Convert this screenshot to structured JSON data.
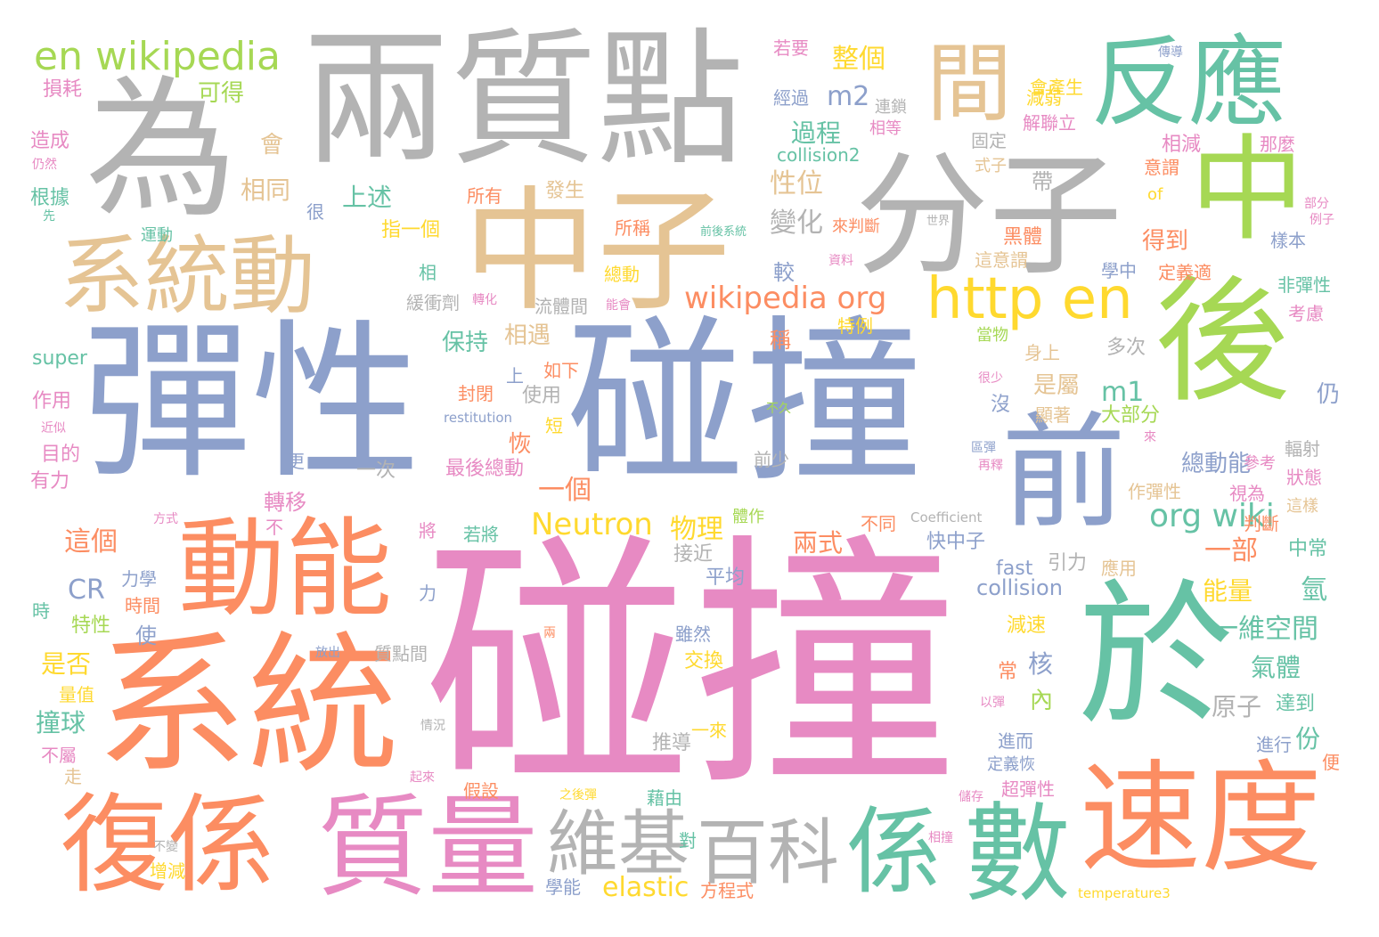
{
  "palette": {
    "pink": "#e78ac3",
    "blue": "#8da0cb",
    "orange": "#fc8d62",
    "teal": "#66c2a5",
    "green": "#a6d854",
    "yellow": "#ffd92f",
    "tan": "#e5c494",
    "grey": "#b3b3b3"
  },
  "words": [
    {
      "text": "碰撞",
      "color": "pink"
    },
    {
      "text": "彈性",
      "color": "blue"
    },
    {
      "text": "碰撞",
      "color": "blue"
    },
    {
      "text": "兩質點",
      "color": "grey"
    },
    {
      "text": "為",
      "color": "grey"
    },
    {
      "text": "中子",
      "color": "tan"
    },
    {
      "text": "分子",
      "color": "grey"
    },
    {
      "text": "反應",
      "color": "teal"
    },
    {
      "text": "間",
      "color": "tan"
    },
    {
      "text": "中",
      "color": "green"
    },
    {
      "text": "系統動",
      "color": "tan"
    },
    {
      "text": "後",
      "color": "green"
    },
    {
      "text": "動能",
      "color": "orange"
    },
    {
      "text": "系統",
      "color": "orange"
    },
    {
      "text": "於",
      "color": "teal"
    },
    {
      "text": "前",
      "color": "blue"
    },
    {
      "text": "速度",
      "color": "orange"
    },
    {
      "text": "復係",
      "color": "orange"
    },
    {
      "text": "質量",
      "color": "pink"
    },
    {
      "text": "維基",
      "color": "grey"
    },
    {
      "text": "百科",
      "color": "grey"
    },
    {
      "text": "係",
      "color": "teal"
    },
    {
      "text": "數",
      "color": "teal"
    },
    {
      "text": "http en",
      "color": "yellow"
    },
    {
      "text": "en wikipedia",
      "color": "green"
    },
    {
      "text": "wikipedia org",
      "color": "orange"
    },
    {
      "text": "org wiki",
      "color": "teal"
    },
    {
      "text": "Neutron",
      "color": "yellow"
    },
    {
      "text": "elastic",
      "color": "yellow"
    },
    {
      "text": "collision",
      "color": "blue"
    },
    {
      "text": "collision2",
      "color": "teal"
    },
    {
      "text": "m2",
      "color": "blue"
    },
    {
      "text": "m1",
      "color": "teal"
    },
    {
      "text": "CR",
      "color": "blue"
    },
    {
      "text": "super",
      "color": "teal"
    },
    {
      "text": "fast",
      "color": "blue"
    },
    {
      "text": "of",
      "color": "yellow"
    },
    {
      "text": "restitution",
      "color": "blue"
    },
    {
      "text": "Coefficient",
      "color": "grey"
    },
    {
      "text": "temperature3",
      "color": "yellow"
    },
    {
      "text": "整個",
      "color": "yellow"
    },
    {
      "text": "過程",
      "color": "teal"
    },
    {
      "text": "性位",
      "color": "tan"
    },
    {
      "text": "變化",
      "color": "grey"
    },
    {
      "text": "較",
      "color": "blue"
    },
    {
      "text": "上述",
      "color": "teal"
    },
    {
      "text": "相同",
      "color": "tan"
    },
    {
      "text": "可得",
      "color": "green"
    },
    {
      "text": "會",
      "color": "tan"
    },
    {
      "text": "損耗",
      "color": "pink"
    },
    {
      "text": "造成",
      "color": "pink"
    },
    {
      "text": "根據",
      "color": "teal"
    },
    {
      "text": "運動",
      "color": "teal"
    },
    {
      "text": "所有",
      "color": "orange"
    },
    {
      "text": "發生",
      "color": "tan"
    },
    {
      "text": "指一個",
      "color": "yellow"
    },
    {
      "text": "所稱",
      "color": "orange"
    },
    {
      "text": "總動",
      "color": "yellow"
    },
    {
      "text": "緩衝劑",
      "color": "grey"
    },
    {
      "text": "流體間",
      "color": "grey"
    },
    {
      "text": "保持",
      "color": "teal"
    },
    {
      "text": "相遇",
      "color": "tan"
    },
    {
      "text": "是屬",
      "color": "tan"
    },
    {
      "text": "大部分",
      "color": "green"
    },
    {
      "text": "總動能",
      "color": "blue"
    },
    {
      "text": "一個",
      "color": "orange"
    },
    {
      "text": "物理",
      "color": "yellow"
    },
    {
      "text": "兩式",
      "color": "orange"
    },
    {
      "text": "一部",
      "color": "orange"
    },
    {
      "text": "能量",
      "color": "yellow"
    },
    {
      "text": "氫",
      "color": "teal"
    },
    {
      "text": "一維空間",
      "color": "teal"
    },
    {
      "text": "氣體",
      "color": "teal"
    },
    {
      "text": "原子",
      "color": "grey"
    },
    {
      "text": "份",
      "color": "teal"
    },
    {
      "text": "核",
      "color": "blue"
    },
    {
      "text": "內",
      "color": "green"
    },
    {
      "text": "撞球",
      "color": "teal"
    },
    {
      "text": "是否",
      "color": "yellow"
    },
    {
      "text": "這個",
      "color": "orange"
    },
    {
      "text": "作用",
      "color": "pink"
    },
    {
      "text": "目的",
      "color": "pink"
    },
    {
      "text": "有力",
      "color": "pink"
    },
    {
      "text": "轉移",
      "color": "pink"
    },
    {
      "text": "力學",
      "color": "blue"
    },
    {
      "text": "時間",
      "color": "orange"
    },
    {
      "text": "特性",
      "color": "green"
    },
    {
      "text": "平均",
      "color": "blue"
    },
    {
      "text": "接近",
      "color": "grey"
    },
    {
      "text": "快中子",
      "color": "blue"
    },
    {
      "text": "引力",
      "color": "grey"
    },
    {
      "text": "應用",
      "color": "tan"
    },
    {
      "text": "中常",
      "color": "teal"
    },
    {
      "text": "判斷",
      "color": "orange"
    },
    {
      "text": "減速",
      "color": "yellow"
    },
    {
      "text": "達到",
      "color": "teal"
    },
    {
      "text": "進而",
      "color": "blue"
    },
    {
      "text": "進行",
      "color": "blue"
    },
    {
      "text": "定義恢",
      "color": "blue"
    },
    {
      "text": "超彈性",
      "color": "pink"
    },
    {
      "text": "假設",
      "color": "orange"
    },
    {
      "text": "推導",
      "color": "grey"
    },
    {
      "text": "一來",
      "color": "yellow"
    },
    {
      "text": "藉由",
      "color": "teal"
    },
    {
      "text": "方程式",
      "color": "orange"
    },
    {
      "text": "學能",
      "color": "blue"
    },
    {
      "text": "交換",
      "color": "yellow"
    },
    {
      "text": "雖然",
      "color": "blue"
    },
    {
      "text": "質點間",
      "color": "grey"
    },
    {
      "text": "最後總動",
      "color": "pink"
    },
    {
      "text": "一次",
      "color": "grey"
    },
    {
      "text": "前少",
      "color": "grey"
    },
    {
      "text": "使用",
      "color": "grey"
    },
    {
      "text": "如下",
      "color": "orange"
    },
    {
      "text": "封閉",
      "color": "orange"
    },
    {
      "text": "特例",
      "color": "yellow"
    },
    {
      "text": "經過",
      "color": "blue"
    },
    {
      "text": "若要",
      "color": "pink"
    },
    {
      "text": "連鎖",
      "color": "grey"
    },
    {
      "text": "相等",
      "color": "pink"
    },
    {
      "text": "會產生",
      "color": "yellow"
    },
    {
      "text": "減弱",
      "color": "yellow"
    },
    {
      "text": "解聯立",
      "color": "pink"
    },
    {
      "text": "固定",
      "color": "grey"
    },
    {
      "text": "式子",
      "color": "tan"
    },
    {
      "text": "相減",
      "color": "pink"
    },
    {
      "text": "意謂",
      "color": "orange"
    },
    {
      "text": "那麼",
      "color": "pink"
    },
    {
      "text": "黑體",
      "color": "orange"
    },
    {
      "text": "這意謂",
      "color": "tan"
    },
    {
      "text": "得到",
      "color": "orange"
    },
    {
      "text": "定義適",
      "color": "orange"
    },
    {
      "text": "學中",
      "color": "blue"
    },
    {
      "text": "非彈性",
      "color": "teal"
    },
    {
      "text": "考慮",
      "color": "pink"
    },
    {
      "text": "當物",
      "color": "green"
    },
    {
      "text": "多次",
      "color": "grey"
    },
    {
      "text": "身上",
      "color": "tan"
    },
    {
      "text": "樣本",
      "color": "blue"
    },
    {
      "text": "顯著",
      "color": "tan"
    },
    {
      "text": "作彈性",
      "color": "tan"
    },
    {
      "text": "視為",
      "color": "pink"
    },
    {
      "text": "狀態",
      "color": "pink"
    },
    {
      "text": "這樣",
      "color": "tan"
    },
    {
      "text": "輻射",
      "color": "grey"
    },
    {
      "text": "參考",
      "color": "pink"
    },
    {
      "text": "不同",
      "color": "orange"
    },
    {
      "text": "體作",
      "color": "green"
    },
    {
      "text": "稱",
      "color": "orange"
    },
    {
      "text": "短",
      "color": "yellow"
    },
    {
      "text": "恢",
      "color": "orange"
    },
    {
      "text": "上",
      "color": "blue"
    },
    {
      "text": "沒",
      "color": "blue"
    },
    {
      "text": "仍",
      "color": "blue"
    },
    {
      "text": "帶",
      "color": "grey"
    },
    {
      "text": "常",
      "color": "orange"
    },
    {
      "text": "便",
      "color": "orange"
    },
    {
      "text": "很",
      "color": "blue"
    },
    {
      "text": "相",
      "color": "teal"
    },
    {
      "text": "使",
      "color": "blue"
    },
    {
      "text": "更",
      "color": "blue"
    },
    {
      "text": "不",
      "color": "pink"
    },
    {
      "text": "將",
      "color": "pink"
    },
    {
      "text": "力",
      "color": "blue"
    },
    {
      "text": "時",
      "color": "teal"
    },
    {
      "text": "走",
      "color": "tan"
    },
    {
      "text": "不屬",
      "color": "pink"
    },
    {
      "text": "量值",
      "color": "yellow"
    },
    {
      "text": "增減",
      "color": "yellow"
    },
    {
      "text": "若將",
      "color": "teal"
    },
    {
      "text": "來判斷",
      "color": "orange"
    },
    {
      "text": "資料",
      "color": "pink"
    },
    {
      "text": "能會",
      "color": "pink"
    },
    {
      "text": "轉化",
      "color": "pink"
    },
    {
      "text": "前後系統",
      "color": "teal"
    },
    {
      "text": "世界",
      "color": "grey"
    },
    {
      "text": "部分",
      "color": "pink"
    },
    {
      "text": "例子",
      "color": "pink"
    },
    {
      "text": "傳導",
      "color": "blue"
    },
    {
      "text": "仍然",
      "color": "pink"
    },
    {
      "text": "先",
      "color": "teal"
    },
    {
      "text": "近似",
      "color": "pink"
    },
    {
      "text": "方式",
      "color": "pink"
    },
    {
      "text": "放出",
      "color": "blue"
    },
    {
      "text": "情況",
      "color": "grey"
    },
    {
      "text": "起來",
      "color": "pink"
    },
    {
      "text": "之後彈",
      "color": "yellow"
    },
    {
      "text": "以彈",
      "color": "pink"
    },
    {
      "text": "儲存",
      "color": "pink"
    },
    {
      "text": "相撞",
      "color": "pink"
    },
    {
      "text": "不變",
      "color": "grey"
    },
    {
      "text": "對",
      "color": "teal"
    },
    {
      "text": "兩",
      "color": "orange"
    },
    {
      "text": "不久",
      "color": "green"
    },
    {
      "text": "很少",
      "color": "pink"
    },
    {
      "text": "再釋",
      "color": "pink"
    },
    {
      "text": "區彈",
      "color": "blue"
    },
    {
      "text": "來",
      "color": "pink"
    }
  ]
}
